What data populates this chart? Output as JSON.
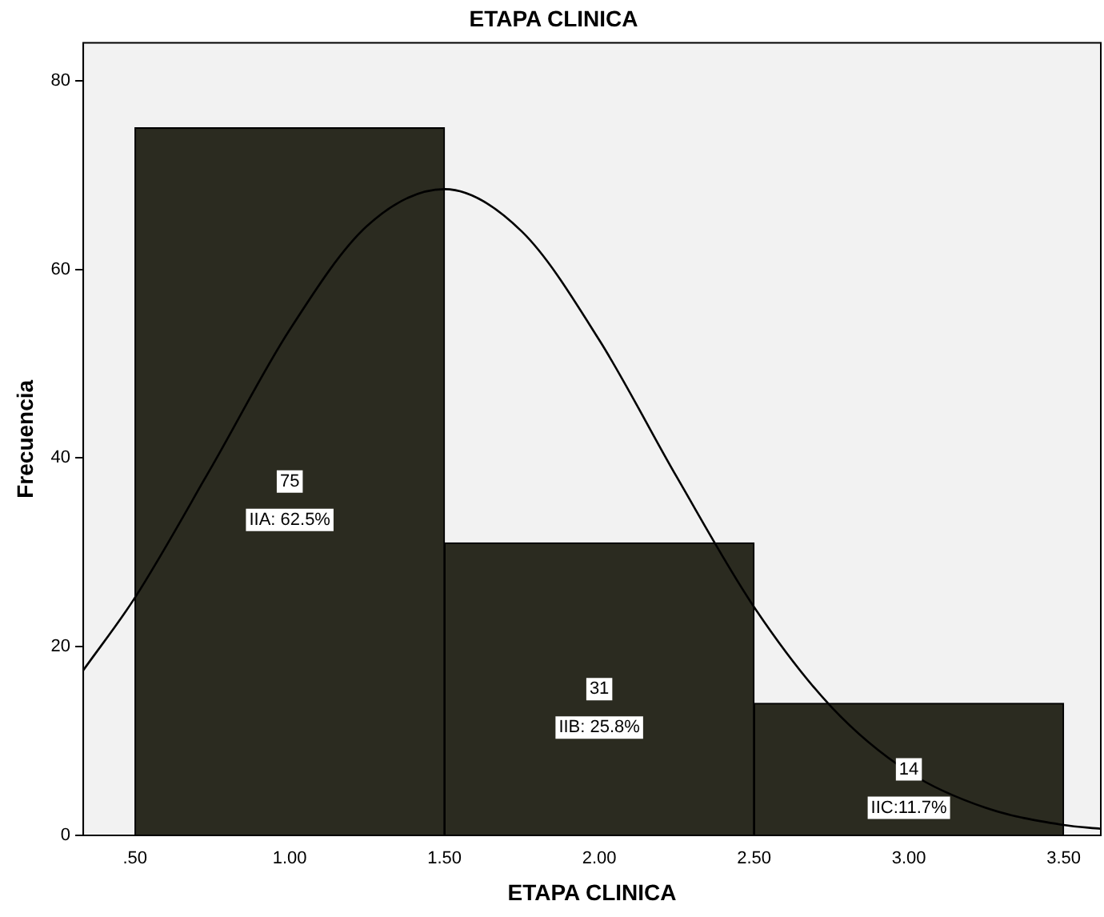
{
  "chart_data": {
    "type": "histogram",
    "title": "ETAPA CLINICA",
    "xlabel": "ETAPA CLINICA",
    "ylabel": "Frecuencia",
    "bins": [
      0.5,
      1.5,
      2.5,
      3.5
    ],
    "values": [
      75,
      31,
      14
    ],
    "color": "#2b2b20",
    "series": [
      {
        "type": "line",
        "color": "#000000",
        "x": [
          0.333,
          0.5,
          0.75,
          1.0,
          1.25,
          1.5,
          1.75,
          2.0,
          2.25,
          2.5,
          2.75,
          3.0,
          3.25,
          3.5,
          3.62
        ],
        "values": [
          17.5,
          25.2,
          39.2,
          53.6,
          64.6,
          68.5,
          64.0,
          52.5,
          38.0,
          24.2,
          13.6,
          6.7,
          2.9,
          1.1,
          0.7
        ]
      }
    ],
    "xlim": [
      0.333,
      3.62
    ],
    "ylim": [
      0,
      84
    ],
    "xticks": [
      {
        "value": 0.5,
        "label": ".50"
      },
      {
        "value": 1.0,
        "label": "1.00"
      },
      {
        "value": 1.5,
        "label": "1.50"
      },
      {
        "value": 2.0,
        "label": "2.00"
      },
      {
        "value": 2.5,
        "label": "2.50"
      },
      {
        "value": 3.0,
        "label": "3.00"
      },
      {
        "value": 3.5,
        "label": "3.50"
      }
    ],
    "yticks": [
      0,
      20,
      40,
      60,
      80
    ],
    "value_labels": [
      "75",
      "31",
      "14"
    ],
    "annotations": [
      "IIA: 62.5%",
      "IIB: 25.8%",
      "IIC:11.7%"
    ],
    "grid": false,
    "legend": false,
    "marker": "none",
    "line_style": "solid"
  }
}
